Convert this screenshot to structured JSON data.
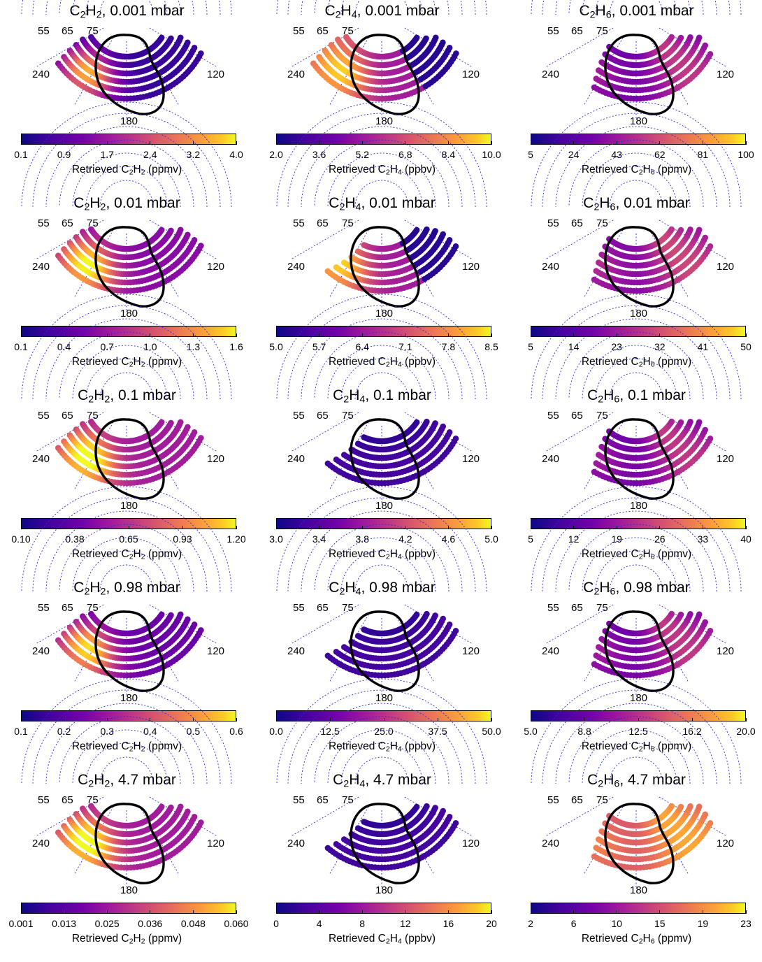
{
  "figure": {
    "colormap": [
      "#0d0887",
      "#46039f",
      "#7201a8",
      "#9c179e",
      "#bd3786",
      "#d8576b",
      "#ed7953",
      "#fb9f3a",
      "#fdca26",
      "#f0f921"
    ],
    "grid_color": "#2b2bd9",
    "outline_color": "#000000",
    "polar_labels": {
      "lat_55": "55",
      "lat_65": "65",
      "lat_75": "75",
      "lon_240": "240",
      "lon_120": "120",
      "lon_180": "180"
    }
  },
  "chart_data": [
    {
      "type": "scatter",
      "species": "C2H2",
      "title": "C₂H₂, 0.001 mbar",
      "pressure": "0.001 mbar",
      "colorbar_label": "Retrieved C₂H₂ (ppmv)",
      "ticks": [
        "0.1",
        "0.9",
        "1.7",
        "2.4",
        "3.2",
        "4.0"
      ],
      "range": [
        0.1,
        4.0
      ]
    },
    {
      "type": "scatter",
      "species": "C2H4",
      "title": "C₂H₄, 0.001 mbar",
      "pressure": "0.001 mbar",
      "colorbar_label": "Retrieved C₂H₄ (ppbv)",
      "ticks": [
        "2.0",
        "3.6",
        "5.2",
        "6.8",
        "8.4",
        "10.0"
      ],
      "range": [
        2.0,
        10.0
      ]
    },
    {
      "type": "scatter",
      "species": "C2H6",
      "title": "C₂H₆, 0.001 mbar",
      "pressure": "0.001 mbar",
      "colorbar_label": "Retrieved C₂H₆ (ppmv)",
      "ticks": [
        "5",
        "24",
        "43",
        "62",
        "81",
        "100"
      ],
      "range": [
        5,
        100
      ]
    },
    {
      "type": "scatter",
      "species": "C2H2",
      "title": "C₂H₂, 0.01 mbar",
      "pressure": "0.01 mbar",
      "colorbar_label": "Retrieved C₂H₂ (ppmv)",
      "ticks": [
        "0.1",
        "0.4",
        "0.7",
        "1.0",
        "1.3",
        "1.6"
      ],
      "range": [
        0.1,
        1.6
      ]
    },
    {
      "type": "scatter",
      "species": "C2H4",
      "title": "C₂H₄, 0.01 mbar",
      "pressure": "0.01 mbar",
      "colorbar_label": "Retrieved C₂H₄ (ppbv)",
      "ticks": [
        "5.0",
        "5.7",
        "6.4",
        "7.1",
        "7.8",
        "8.5"
      ],
      "range": [
        5.0,
        8.5
      ]
    },
    {
      "type": "scatter",
      "species": "C2H6",
      "title": "C₂H₆, 0.01 mbar",
      "pressure": "0.01 mbar",
      "colorbar_label": "Retrieved C₂H₆ (ppmv)",
      "ticks": [
        "5",
        "14",
        "23",
        "32",
        "41",
        "50"
      ],
      "range": [
        5,
        50
      ]
    },
    {
      "type": "scatter",
      "species": "C2H2",
      "title": "C₂H₂, 0.1 mbar",
      "pressure": "0.1 mbar",
      "colorbar_label": "Retrieved C₂H₂ (ppmv)",
      "ticks": [
        "0.10",
        "0.38",
        "0.65",
        "0.93",
        "1.20"
      ],
      "range": [
        0.1,
        1.2
      ]
    },
    {
      "type": "scatter",
      "species": "C2H4",
      "title": "C₂H₄, 0.1 mbar",
      "pressure": "0.1 mbar",
      "colorbar_label": "Retrieved C₂H₄ (ppbv)",
      "ticks": [
        "3.0",
        "3.4",
        "3.8",
        "4.2",
        "4.6",
        "5.0"
      ],
      "range": [
        3.0,
        5.0
      ]
    },
    {
      "type": "scatter",
      "species": "C2H6",
      "title": "C₂H₆, 0.1 mbar",
      "pressure": "0.1 mbar",
      "colorbar_label": "Retrieved C₂H₆ (ppmv)",
      "ticks": [
        "5",
        "12",
        "19",
        "26",
        "33",
        "40"
      ],
      "range": [
        5,
        40
      ]
    },
    {
      "type": "scatter",
      "species": "C2H2",
      "title": "C₂H₂, 0.98 mbar",
      "pressure": "0.98 mbar",
      "colorbar_label": "Retrieved C₂H₂ (ppmv)",
      "ticks": [
        "0.1",
        "0.2",
        "0.3",
        "0.4",
        "0.5",
        "0.6"
      ],
      "range": [
        0.1,
        0.6
      ]
    },
    {
      "type": "scatter",
      "species": "C2H4",
      "title": "C₂H₄, 0.98 mbar",
      "pressure": "0.98 mbar",
      "colorbar_label": "Retrieved C₂H₄ (ppbv)",
      "ticks": [
        "0.0",
        "12.5",
        "25.0",
        "37.5",
        "50.0"
      ],
      "range": [
        0.0,
        50.0
      ]
    },
    {
      "type": "scatter",
      "species": "C2H6",
      "title": "C₂H₆, 0.98 mbar",
      "pressure": "0.98 mbar",
      "colorbar_label": "Retrieved C₂H₆ (ppmv)",
      "ticks": [
        "5.0",
        "8.8",
        "12.5",
        "16.2",
        "20.0"
      ],
      "range": [
        5.0,
        20.0
      ]
    },
    {
      "type": "scatter",
      "species": "C2H2",
      "title": "C₂H₂, 4.7 mbar",
      "pressure": "4.7 mbar",
      "colorbar_label": "Retrieved C₂H₂ (ppmv)",
      "ticks": [
        "0.001",
        "0.013",
        "0.025",
        "0.036",
        "0.048",
        "0.060"
      ],
      "range": [
        0.001,
        0.06
      ]
    },
    {
      "type": "scatter",
      "species": "C2H4",
      "title": "C₂H₄, 4.7 mbar",
      "pressure": "4.7 mbar",
      "colorbar_label": "Retrieved C₂H₄ (ppbv)",
      "ticks": [
        "0",
        "4",
        "8",
        "12",
        "16",
        "20"
      ],
      "range": [
        0,
        20
      ]
    },
    {
      "type": "scatter",
      "species": "C2H6",
      "title": "C₂H₆, 4.7 mbar",
      "pressure": "4.7 mbar",
      "colorbar_label": "Retrieved C₂H₆ (ppmv)",
      "ticks": [
        "2",
        "6",
        "10",
        "15",
        "19",
        "23"
      ],
      "range": [
        2,
        23
      ]
    }
  ]
}
